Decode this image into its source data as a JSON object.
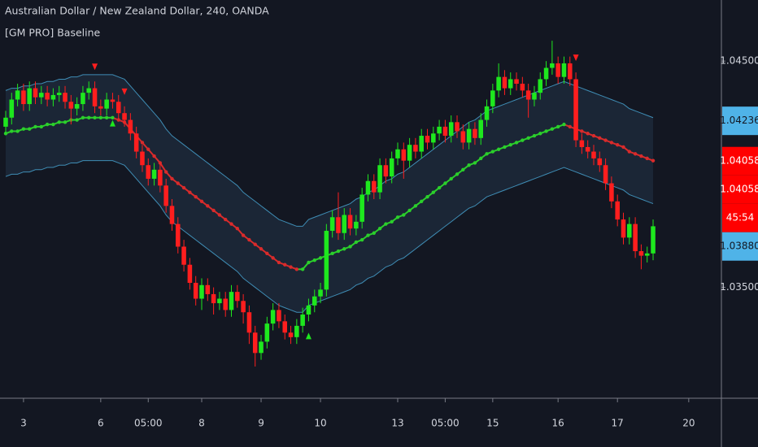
{
  "chart_data": {
    "type": "candlestick",
    "title": "Australian Dollar / New Zealand Dollar, 240, OANDA",
    "indicator_title": "[GM PRO] Baseline",
    "categories": [
      null,
      null,
      null,
      "3",
      null,
      null,
      null,
      null,
      null,
      null,
      null,
      null,
      null,
      null,
      null,
      null,
      "6",
      null,
      null,
      null,
      null,
      null,
      null,
      null,
      "05:00",
      null,
      null,
      null,
      null,
      null,
      null,
      null,
      null,
      "8",
      null,
      null,
      null,
      null,
      null,
      null,
      null,
      null,
      null,
      "9",
      null,
      null,
      null,
      null,
      null,
      null,
      null,
      null,
      null,
      "10",
      null,
      null,
      null,
      null,
      null,
      null,
      null,
      null,
      null,
      null,
      null,
      null,
      "13",
      null,
      null,
      null,
      null,
      null,
      null,
      null,
      "05:00",
      null,
      null,
      null,
      null,
      null,
      null,
      null,
      "15",
      null,
      null,
      null,
      null,
      null,
      null,
      null,
      null,
      null,
      null,
      "16",
      null,
      null,
      null,
      null,
      null,
      null,
      null,
      null,
      null,
      "17",
      null,
      null,
      null,
      null,
      null,
      null,
      null,
      null,
      null,
      null,
      null,
      "20",
      null
    ],
    "open": [
      1.0421,
      1.0425,
      1.0433,
      1.0437,
      1.0431,
      1.0438,
      1.0434,
      1.0436,
      1.0433,
      1.0435,
      1.0436,
      1.0432,
      1.0429,
      1.0431,
      1.0436,
      1.0438,
      1.043,
      1.0429,
      1.0433,
      1.0432,
      1.0427,
      1.0424,
      1.0418,
      1.041,
      1.0404,
      1.0398,
      1.0402,
      1.0395,
      1.0386,
      1.0378,
      1.0368,
      1.036,
      1.0352,
      1.0345,
      1.0351,
      1.0347,
      1.0343,
      1.0345,
      1.034,
      1.0348,
      1.0344,
      1.0339,
      1.033,
      1.0321,
      1.0326,
      1.0334,
      1.034,
      1.0335,
      1.033,
      1.0328,
      1.0333,
      1.0338,
      1.0342,
      1.0346,
      1.0349,
      1.0375,
      1.0381,
      1.0374,
      1.0382,
      1.0376,
      1.0379,
      1.0391,
      1.0397,
      1.0392,
      1.0404,
      1.0399,
      1.0407,
      1.0411,
      1.0406,
      1.0413,
      1.041,
      1.0417,
      1.0414,
      1.0418,
      1.0421,
      1.0417,
      1.0423,
      1.0419,
      1.0414,
      1.042,
      1.0416,
      1.0424,
      1.043,
      1.0437,
      1.0443,
      1.0438,
      1.0442,
      1.044,
      1.0437,
      1.0433,
      1.0436,
      1.0442,
      1.0447,
      1.0449,
      1.0443,
      1.0449,
      1.0442,
      1.0415,
      1.0412,
      1.041,
      1.0407,
      1.0404,
      1.0396,
      1.0388,
      1.038,
      1.0372,
      1.0378,
      1.0366,
      1.0364,
      1.0365,
      null,
      null,
      null,
      null,
      null,
      null,
      null
    ],
    "high": [
      1.0428,
      1.0436,
      1.044,
      1.044,
      1.0441,
      1.0441,
      1.0439,
      1.0439,
      1.0438,
      1.0439,
      1.0439,
      1.0435,
      1.0434,
      1.0439,
      1.0441,
      1.0441,
      1.0433,
      1.0436,
      1.0436,
      1.0435,
      1.043,
      1.0427,
      1.0421,
      1.0413,
      1.0407,
      1.0405,
      1.0405,
      1.0398,
      1.0389,
      1.0381,
      1.0371,
      1.0363,
      1.0355,
      1.0354,
      1.0354,
      1.035,
      1.0348,
      1.0348,
      1.0351,
      1.0351,
      1.0347,
      1.0342,
      1.0333,
      1.0329,
      1.0337,
      1.0343,
      1.0343,
      1.0338,
      1.0333,
      1.0336,
      1.0341,
      1.0345,
      1.0349,
      1.0352,
      1.0378,
      1.0384,
      1.0392,
      1.0385,
      1.0385,
      1.0382,
      1.0394,
      1.04,
      1.04,
      1.0407,
      1.0407,
      1.041,
      1.0414,
      1.0414,
      1.0416,
      1.0416,
      1.042,
      1.042,
      1.0421,
      1.0424,
      1.0424,
      1.0426,
      1.0426,
      1.0422,
      1.0423,
      1.0423,
      1.0427,
      1.0433,
      1.044,
      1.0449,
      1.0446,
      1.0445,
      1.0445,
      1.0443,
      1.044,
      1.0439,
      1.0445,
      1.045,
      1.0459,
      1.0452,
      1.0452,
      1.0452,
      1.0445,
      1.0418,
      1.0415,
      1.0413,
      1.041,
      1.0407,
      1.0399,
      1.0391,
      1.0383,
      1.0381,
      1.0381,
      1.0369,
      1.0368,
      1.038,
      null,
      null,
      null,
      null,
      null,
      null,
      null
    ],
    "low": [
      1.0418,
      1.0422,
      1.043,
      1.0428,
      1.0428,
      1.0431,
      1.0431,
      1.043,
      1.043,
      1.0432,
      1.0429,
      1.0422,
      1.0426,
      1.0428,
      1.0433,
      1.0427,
      1.0426,
      1.0426,
      1.0429,
      1.0424,
      1.0421,
      1.0415,
      1.0407,
      1.0401,
      1.0395,
      1.0395,
      1.0392,
      1.0383,
      1.0375,
      1.0365,
      1.0357,
      1.0349,
      1.0342,
      1.034,
      1.0344,
      1.0338,
      1.034,
      1.0337,
      1.0337,
      1.0341,
      1.0334,
      1.0325,
      1.0315,
      1.0318,
      1.0323,
      1.0331,
      1.0332,
      1.0327,
      1.0325,
      1.0325,
      1.033,
      1.0335,
      1.0339,
      1.0343,
      1.0346,
      1.0372,
      1.0371,
      1.0371,
      1.0373,
      1.0373,
      1.0376,
      1.0388,
      1.0389,
      1.0389,
      1.0396,
      1.0396,
      1.0404,
      1.0398,
      1.0403,
      1.0407,
      1.0407,
      1.0411,
      1.0411,
      1.0415,
      1.0414,
      1.0414,
      1.0416,
      1.0411,
      1.0411,
      1.0413,
      1.0413,
      1.0421,
      1.0427,
      1.0434,
      1.0435,
      1.0435,
      1.0437,
      1.0434,
      1.0425,
      1.043,
      1.0433,
      1.0439,
      1.0444,
      1.044,
      1.044,
      1.0439,
      1.0412,
      1.0409,
      1.0407,
      1.0404,
      1.0401,
      1.0393,
      1.0385,
      1.0377,
      1.0369,
      1.0369,
      1.0363,
      1.0358,
      1.0361,
      1.0362,
      null,
      null,
      null,
      null,
      null,
      null,
      null
    ],
    "close": [
      1.0425,
      1.0433,
      1.0437,
      1.0431,
      1.0438,
      1.0434,
      1.0436,
      1.0433,
      1.0435,
      1.0436,
      1.0432,
      1.0429,
      1.0431,
      1.0436,
      1.0438,
      1.043,
      1.0429,
      1.0433,
      1.0432,
      1.0427,
      1.0424,
      1.0418,
      1.041,
      1.0404,
      1.0398,
      1.0402,
      1.0395,
      1.0386,
      1.0378,
      1.0368,
      1.036,
      1.0352,
      1.0345,
      1.0351,
      1.0347,
      1.0343,
      1.0345,
      1.034,
      1.0348,
      1.0344,
      1.0339,
      1.033,
      1.0321,
      1.0326,
      1.0334,
      1.034,
      1.0335,
      1.033,
      1.0328,
      1.0333,
      1.0338,
      1.0342,
      1.0346,
      1.0349,
      1.0375,
      1.0381,
      1.0374,
      1.0382,
      1.0376,
      1.0379,
      1.0391,
      1.0397,
      1.0392,
      1.0404,
      1.0399,
      1.0407,
      1.0411,
      1.0406,
      1.0413,
      1.041,
      1.0417,
      1.0414,
      1.0418,
      1.0421,
      1.0417,
      1.0423,
      1.0419,
      1.0414,
      1.042,
      1.0416,
      1.0424,
      1.043,
      1.0437,
      1.0443,
      1.0438,
      1.0442,
      1.044,
      1.0437,
      1.0433,
      1.0436,
      1.0442,
      1.0447,
      1.0449,
      1.0443,
      1.0449,
      1.0442,
      1.0415,
      1.0412,
      1.041,
      1.0407,
      1.0404,
      1.0396,
      1.0388,
      1.038,
      1.0372,
      1.0378,
      1.0366,
      1.0364,
      1.0365,
      1.0377,
      null,
      null,
      null,
      null,
      null,
      null,
      null
    ],
    "up_color": "#1ee81e",
    "down_color": "#ff1e1e",
    "baseline": {
      "values": [
        1.0418,
        1.0419,
        1.0419,
        1.042,
        1.042,
        1.0421,
        1.0421,
        1.0422,
        1.0422,
        1.0423,
        1.0423,
        1.0424,
        1.0424,
        1.0425,
        1.0425,
        1.0425,
        1.0425,
        1.0425,
        1.0425,
        1.0424,
        1.0423,
        1.042,
        1.0417,
        1.0414,
        1.0411,
        1.0408,
        1.0405,
        1.0401,
        1.0398,
        1.0396,
        1.0394,
        1.0392,
        1.039,
        1.0388,
        1.0386,
        1.0384,
        1.0382,
        1.038,
        1.0378,
        1.0376,
        1.0373,
        1.0371,
        1.0369,
        1.0367,
        1.0365,
        1.0363,
        1.0361,
        1.036,
        1.0359,
        1.0358,
        1.0358,
        1.0361,
        1.0362,
        1.0363,
        1.0364,
        1.0365,
        1.0366,
        1.0367,
        1.0368,
        1.037,
        1.0371,
        1.0373,
        1.0374,
        1.0376,
        1.0378,
        1.0379,
        1.0381,
        1.0382,
        1.0384,
        1.0386,
        1.0388,
        1.039,
        1.0392,
        1.0394,
        1.0396,
        1.0398,
        1.04,
        1.0402,
        1.0404,
        1.0405,
        1.0407,
        1.0409,
        1.041,
        1.0411,
        1.0412,
        1.0413,
        1.0414,
        1.0415,
        1.0416,
        1.0417,
        1.0418,
        1.0419,
        1.042,
        1.0421,
        1.0422,
        1.0421,
        1.042,
        1.0419,
        1.0418,
        1.0417,
        1.0416,
        1.0415,
        1.0414,
        1.0413,
        1.0412,
        1.041,
        1.0409,
        1.0408,
        1.0407,
        1.0406,
        null,
        null,
        null,
        null,
        null,
        null,
        null
      ],
      "up_color": "#2bcf2b",
      "down_color": "#d92b2b"
    },
    "band": {
      "upper": [
        1.0437,
        1.0438,
        1.0438,
        1.0439,
        1.0439,
        1.044,
        1.044,
        1.0441,
        1.0441,
        1.0442,
        1.0442,
        1.0443,
        1.0443,
        1.0444,
        1.0444,
        1.0444,
        1.0444,
        1.0444,
        1.0444,
        1.0443,
        1.0442,
        1.0439,
        1.0436,
        1.0433,
        1.043,
        1.0427,
        1.0424,
        1.042,
        1.0417,
        1.0415,
        1.0413,
        1.0411,
        1.0409,
        1.0407,
        1.0405,
        1.0403,
        1.0401,
        1.0399,
        1.0397,
        1.0395,
        1.0392,
        1.039,
        1.0388,
        1.0386,
        1.0384,
        1.0382,
        1.038,
        1.0379,
        1.0378,
        1.0377,
        1.0377,
        1.038,
        1.0381,
        1.0382,
        1.0383,
        1.0384,
        1.0385,
        1.0386,
        1.0387,
        1.0389,
        1.039,
        1.0392,
        1.0393,
        1.0395,
        1.0397,
        1.0398,
        1.04,
        1.0401,
        1.0403,
        1.0405,
        1.0407,
        1.0409,
        1.0411,
        1.0413,
        1.0415,
        1.0417,
        1.0419,
        1.0421,
        1.0423,
        1.0424,
        1.0426,
        1.0428,
        1.0429,
        1.043,
        1.0431,
        1.0432,
        1.0433,
        1.0434,
        1.0435,
        1.0436,
        1.0437,
        1.0438,
        1.0439,
        1.044,
        1.0441,
        1.044,
        1.0439,
        1.0438,
        1.0437,
        1.0436,
        1.0435,
        1.0434,
        1.0433,
        1.0432,
        1.0431,
        1.0429,
        1.0428,
        1.0427,
        1.0426,
        1.0425,
        null,
        null,
        null,
        null,
        null,
        null,
        null
      ],
      "lower": [
        1.0399,
        1.04,
        1.04,
        1.0401,
        1.0401,
        1.0402,
        1.0402,
        1.0403,
        1.0403,
        1.0404,
        1.0404,
        1.0405,
        1.0405,
        1.0406,
        1.0406,
        1.0406,
        1.0406,
        1.0406,
        1.0406,
        1.0405,
        1.0404,
        1.0401,
        1.0398,
        1.0395,
        1.0392,
        1.0389,
        1.0386,
        1.0382,
        1.0379,
        1.0377,
        1.0375,
        1.0373,
        1.0371,
        1.0369,
        1.0367,
        1.0365,
        1.0363,
        1.0361,
        1.0359,
        1.0357,
        1.0354,
        1.0352,
        1.035,
        1.0348,
        1.0346,
        1.0344,
        1.0342,
        1.0341,
        1.034,
        1.0339,
        1.0339,
        1.0342,
        1.0343,
        1.0344,
        1.0345,
        1.0346,
        1.0347,
        1.0348,
        1.0349,
        1.0351,
        1.0352,
        1.0354,
        1.0355,
        1.0357,
        1.0359,
        1.036,
        1.0362,
        1.0363,
        1.0365,
        1.0367,
        1.0369,
        1.0371,
        1.0373,
        1.0375,
        1.0377,
        1.0379,
        1.0381,
        1.0383,
        1.0385,
        1.0386,
        1.0388,
        1.039,
        1.0391,
        1.0392,
        1.0393,
        1.0394,
        1.0395,
        1.0396,
        1.0397,
        1.0398,
        1.0399,
        1.04,
        1.0401,
        1.0402,
        1.0403,
        1.0402,
        1.0401,
        1.04,
        1.0399,
        1.0398,
        1.0397,
        1.0396,
        1.0395,
        1.0394,
        1.0393,
        1.0391,
        1.039,
        1.0389,
        1.0388,
        1.0387,
        null,
        null,
        null,
        null,
        null,
        null,
        null
      ],
      "fill": "#1b2636",
      "line_color": "#3f8db5"
    },
    "sell_signals": [
      15,
      20,
      96
    ],
    "buy_signals": [
      18,
      51
    ],
    "ylim": [
      1.0301,
      1.0477
    ],
    "yticks": [
      {
        "value": 1.035,
        "label": "1.03500"
      },
      {
        "value": 1.045,
        "label": "1.04500"
      }
    ],
    "price_labels": [
      {
        "value": 1.04236,
        "label": "1.04236",
        "color": "#4fb3e8",
        "text_color": "#131722"
      },
      {
        "value": 1.04058,
        "label": "1.04058",
        "color": "#ff0000",
        "text_color": "#ffffff"
      },
      {
        "value": 1.04058,
        "label": "1.04058",
        "color": "#ff0000",
        "text_color": "#ffffff"
      },
      {
        "label": "45:54",
        "color": "#ff0000",
        "text_color": "#ffffff"
      },
      {
        "value": 1.0388,
        "label": "1.03880",
        "color": "#4fb3e8",
        "text_color": "#131722"
      }
    ]
  }
}
